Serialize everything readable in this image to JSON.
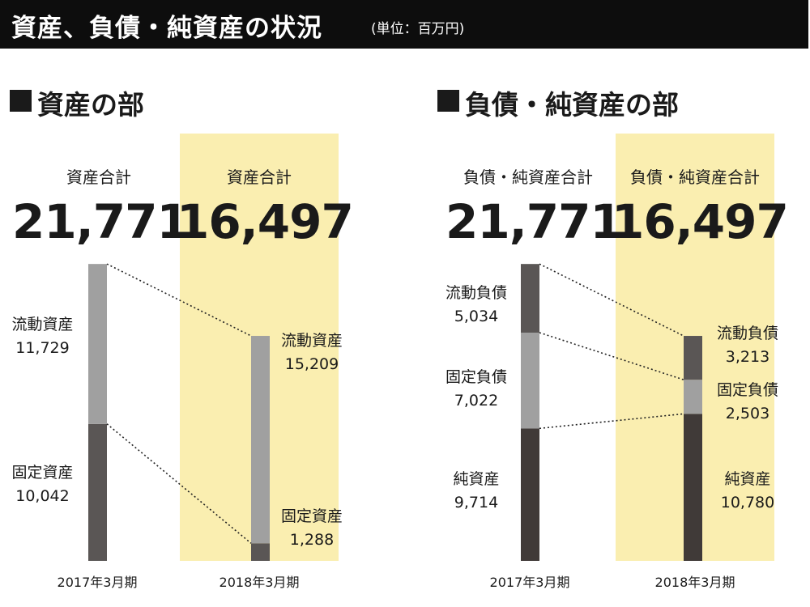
{
  "header": {
    "title": "資産、負債・純資産の状況",
    "unit": "(単位：百万円)"
  },
  "colors": {
    "dark": "#403a38",
    "medium": "#5a5655",
    "light": "#a0a0a0",
    "highlight": "#faeeb0",
    "header_bg": "#0d0d0d"
  },
  "chart_data": [
    {
      "type": "bar",
      "title": "資産の部",
      "categories": [
        "2017年3月期",
        "2018年3月期"
      ],
      "totals_label": "資産合計",
      "totals": [
        "21,771",
        "16,497"
      ],
      "series": [
        {
          "name": "固定資産",
          "values": [
            10042,
            1288
          ],
          "display": [
            "10,042",
            "1,288"
          ],
          "color": "#5a5655"
        },
        {
          "name": "流動資産",
          "values": [
            11729,
            15209
          ],
          "display": [
            "11,729",
            "15,209"
          ],
          "color": "#a0a0a0"
        }
      ]
    },
    {
      "type": "bar",
      "title": "負債・純資産の部",
      "categories": [
        "2017年3月期",
        "2018年3月期"
      ],
      "totals_label": "負債・純資産合計",
      "totals": [
        "21,771",
        "16,497"
      ],
      "series": [
        {
          "name": "純資産",
          "values": [
            9714,
            10780
          ],
          "display": [
            "9,714",
            "10,780"
          ],
          "color": "#403a38"
        },
        {
          "name": "固定負債",
          "values": [
            7022,
            2503
          ],
          "display": [
            "7,022",
            "2,503"
          ],
          "color": "#a0a0a0"
        },
        {
          "name": "流動負債",
          "values": [
            5034,
            3213
          ],
          "display": [
            "5,034",
            "3,213"
          ],
          "color": "#5a5655"
        }
      ]
    }
  ]
}
